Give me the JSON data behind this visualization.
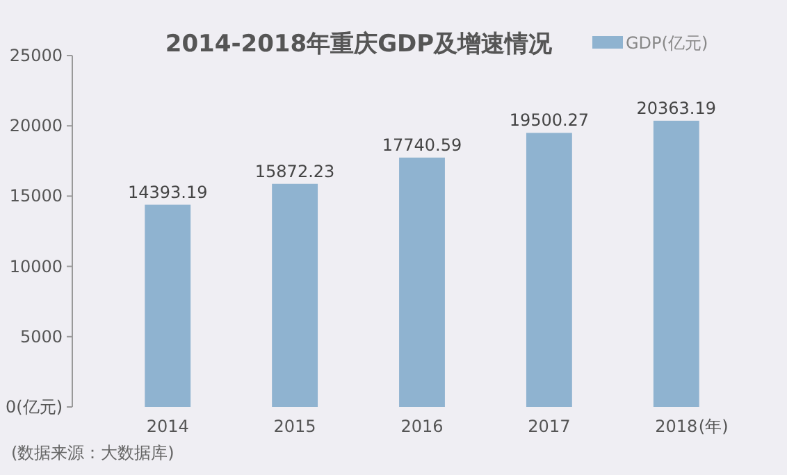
{
  "chart_data": {
    "type": "bar",
    "title": "2014-2018年重庆GDP及增速情况",
    "xlabel": "(年)",
    "categories": [
      "2014",
      "2015",
      "2016",
      "2017",
      "2018"
    ],
    "series": [
      {
        "name": "GDP(亿元)",
        "color": "#8fb3d0",
        "values": [
          14393.19,
          15872.23,
          17740.59,
          19500.27,
          20363.19
        ]
      }
    ],
    "ylim": [
      0,
      25000
    ],
    "yticks": [
      {
        "value": 0,
        "label": "0(亿元)"
      },
      5000,
      10000,
      15000,
      20000,
      25000
    ],
    "data_labels": true,
    "legend": "top right",
    "grid": false,
    "annotations": [
      "(数据来源：大数据库)"
    ]
  }
}
